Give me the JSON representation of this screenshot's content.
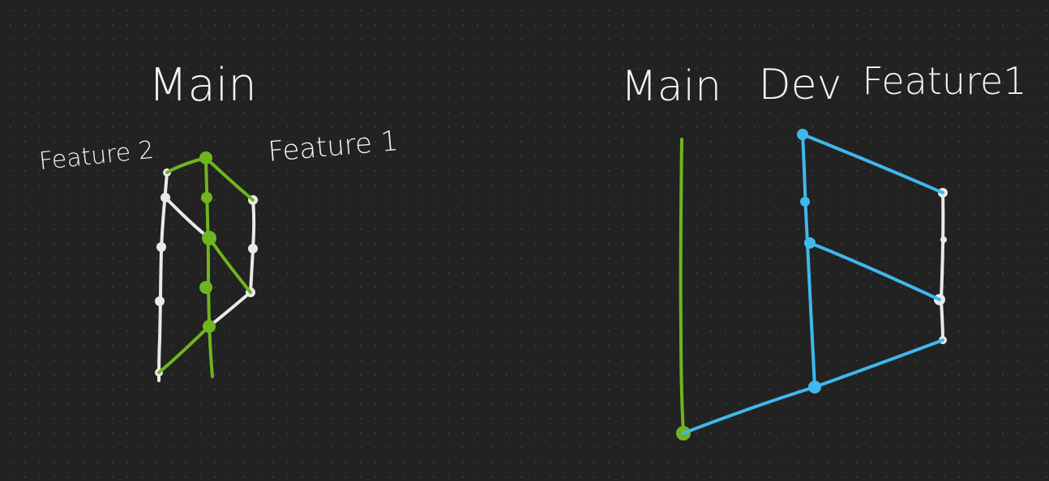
{
  "left_diagram": {
    "title": "Main",
    "left_label": "Feature 2",
    "right_label": "Feature 1"
  },
  "right_diagram": {
    "main_label": "Main",
    "dev_label": "Dev",
    "feature_label": "Feature1"
  },
  "colors": {
    "background": "#222222",
    "main_branch": "#6fb51f",
    "dev_branch": "#3fb8ec",
    "feature_branch": "#e9e9e9",
    "text": "#f4f4f4"
  }
}
